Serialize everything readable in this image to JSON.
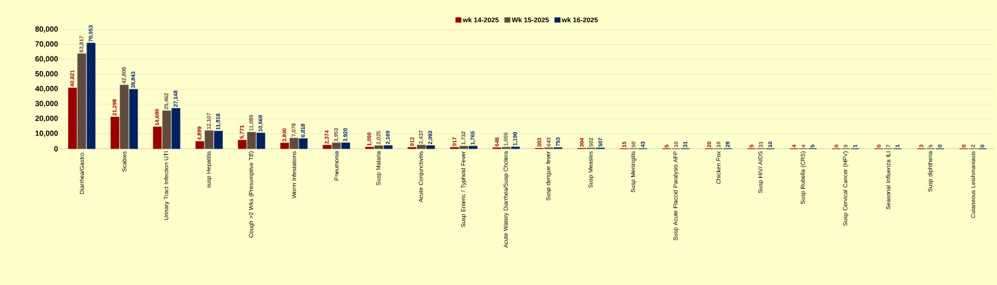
{
  "chart_data": {
    "type": "bar",
    "categories": [
      "Diarrhea/Gastro.",
      "Scabies",
      "Urinary Tract Infection UTI",
      "susp Hepatitis",
      "Cough >2 Wks (Presumptive TB)",
      "Worm Infestations",
      "Pneumonia",
      "Susp Malaria",
      "Acute Conjunctivitis",
      "Susp Enteric / Typhoid  Fever",
      "Acute Watery Diarrhea/Susp Cholera",
      "Susp dengue fever",
      "Susp Measles",
      "Susp Meningitis",
      "Susp Acute Flaccid Paralysis AFP",
      "Chicken Pox",
      "Susp HIV/ AIDS",
      "Susp Rubella (CRS)",
      "Susp Cervical Cancer (HPV)",
      "Seasonal Influenza ILI",
      "Susp diphtheria",
      "Cutaneous Leishmaniasis"
    ],
    "series": [
      {
        "name": "wk 14-2025",
        "color": "#990000",
        "values": [
          40821,
          21298,
          14699,
          4899,
          5771,
          3840,
          2374,
          1050,
          912,
          917,
          648,
          303,
          304,
          15,
          5,
          20,
          5,
          4,
          0,
          0,
          3,
          0
        ],
        "value_labels": [
          "40,821",
          "21,298",
          "14,699",
          "4,899",
          "5,771",
          "3,840",
          "2,374",
          "1,050",
          "912",
          "917",
          "648",
          "303",
          "304",
          "15",
          "5",
          "20",
          "5",
          "4",
          "0",
          "0",
          "3",
          "0"
        ]
      },
      {
        "name": "Wk 15-2025",
        "color": "#604a40",
        "values": [
          63817,
          42808,
          25462,
          12107,
          11085,
          7078,
          3953,
          2025,
          2437,
          1732,
          1005,
          643,
          502,
          50,
          10,
          16,
          31,
          4,
          9,
          7,
          5,
          2
        ],
        "value_labels": [
          "63,817",
          "42,808",
          "25,462",
          "12,107",
          "11,085",
          "7,078",
          "3,953",
          "2,025",
          "2,437",
          "1,732",
          "1,005",
          "643",
          "502",
          "50",
          "10",
          "16",
          "31",
          "4",
          "9",
          "7",
          "5",
          "2"
        ]
      },
      {
        "name": "wk 16-2025",
        "color": "#002060",
        "values": [
          70953,
          39843,
          27148,
          11818,
          10569,
          6818,
          3920,
          2169,
          2093,
          1765,
          1190,
          753,
          507,
          43,
          31,
          28,
          10,
          5,
          1,
          1,
          0,
          0
        ],
        "value_labels": [
          "70,953",
          "39,843",
          "27,148",
          "11,818",
          "10,569",
          "6,818",
          "3,920",
          "2,169",
          "2,093",
          "1,765",
          "1,190",
          "753",
          "507",
          "43",
          "31",
          "28",
          "10",
          "5",
          "1",
          "1",
          "0",
          "0"
        ]
      }
    ],
    "ylim": [
      0,
      80000
    ],
    "yticks": [
      0,
      {
        "value": 10000,
        "label": "10,000"
      },
      {
        "value": 20000,
        "label": "20,000"
      },
      {
        "value": 30000,
        "label": "30,000"
      },
      {
        "value": 40000,
        "label": "40,000"
      },
      {
        "value": 50000,
        "label": "50,000"
      },
      {
        "value": 60000,
        "label": "60,000"
      },
      {
        "value": 70000,
        "label": "70,000"
      },
      {
        "value": 80000,
        "label": "80,000"
      }
    ],
    "grid": "y",
    "legend": "top"
  }
}
